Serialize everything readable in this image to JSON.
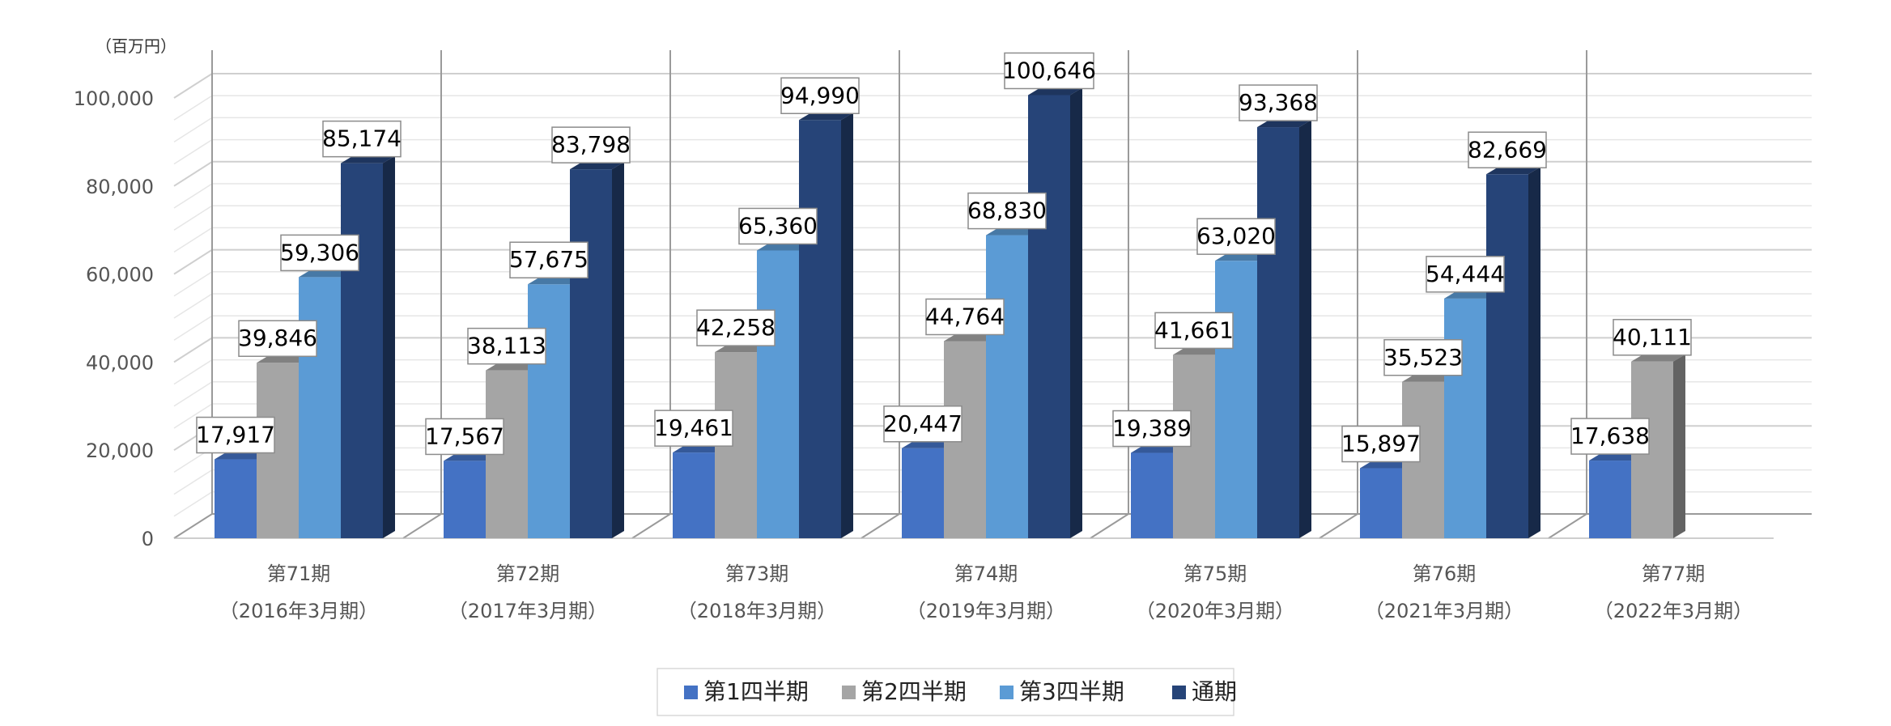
{
  "chart_data": {
    "type": "bar",
    "unit_label": "（百万円）",
    "ylim": [
      0,
      100000
    ],
    "y_ticks": [
      "0",
      "20,000",
      "40,000",
      "60,000",
      "80,000",
      "100,000"
    ],
    "categories": [
      {
        "period": "第71期",
        "fiscal": "（2016年3月期）"
      },
      {
        "period": "第72期",
        "fiscal": "（2017年3月期）"
      },
      {
        "period": "第73期",
        "fiscal": "（2018年3月期）"
      },
      {
        "period": "第74期",
        "fiscal": "（2019年3月期）"
      },
      {
        "period": "第75期",
        "fiscal": "（2020年3月期）"
      },
      {
        "period": "第76期",
        "fiscal": "（2021年3月期）"
      },
      {
        "period": "第77期",
        "fiscal": "（2022年3月期）"
      }
    ],
    "series": [
      {
        "name": "第1四半期",
        "color": "#4472C4",
        "values": [
          17917,
          17567,
          19461,
          20447,
          19389,
          15897,
          17638
        ],
        "labels": [
          "17,917",
          "17,567",
          "19,461",
          "20,447",
          "19,389",
          "15,897",
          "17,638"
        ]
      },
      {
        "name": "第2四半期",
        "color": "#A5A5A5",
        "values": [
          39846,
          38113,
          42258,
          44764,
          41661,
          35523,
          40111
        ],
        "labels": [
          "39,846",
          "38,113",
          "42,258",
          "44,764",
          "41,661",
          "35,523",
          "40,111"
        ]
      },
      {
        "name": "第3四半期",
        "color": "#5B9BD5",
        "values": [
          59306,
          57675,
          65360,
          68830,
          63020,
          54444,
          null
        ],
        "labels": [
          "59,306",
          "57,675",
          "65,360",
          "68,830",
          "63,020",
          "54,444",
          null
        ]
      },
      {
        "name": "通期",
        "color": "#264478",
        "values": [
          85174,
          83798,
          94990,
          100646,
          93368,
          82669,
          null
        ],
        "labels": [
          "85,174",
          "83,798",
          "94,990",
          "100,646",
          "93,368",
          "82,669",
          null
        ]
      }
    ],
    "grid": true,
    "legend_position": "bottom"
  }
}
